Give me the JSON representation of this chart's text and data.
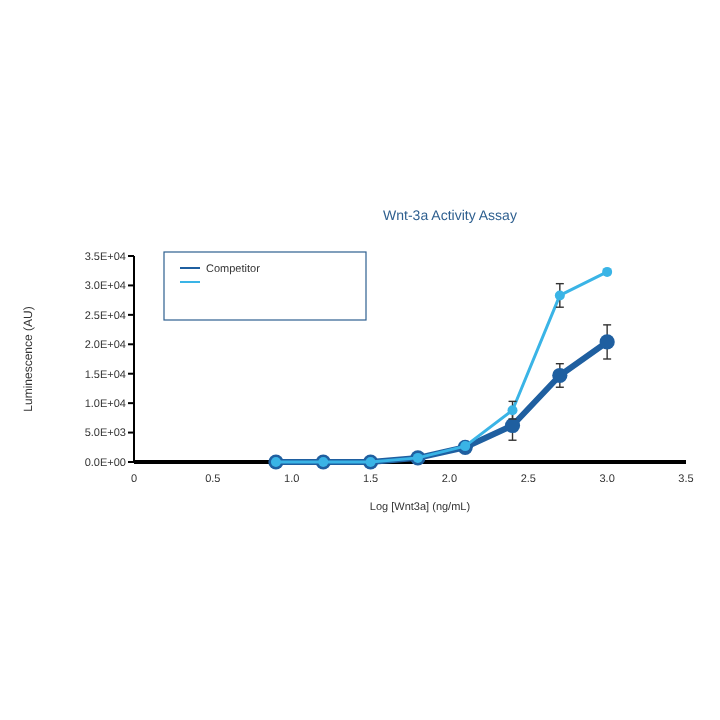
{
  "chart_data": {
    "type": "line",
    "title": "Wnt-3a Activity Assay",
    "xlabel": "Log [Wnt3a] (ng/mL)",
    "ylabel": "Luminescence (AU)",
    "x": [
      0.9,
      1.2,
      1.5,
      1.8,
      2.1,
      2.4,
      2.7,
      3.0
    ],
    "series": [
      {
        "name": "Competitor",
        "color": "#1f5fa0",
        "values": [
          0,
          0,
          0,
          700,
          2500,
          6200,
          14700,
          20400
        ],
        "errors": [
          null,
          null,
          null,
          null,
          null,
          2500,
          2000,
          2900
        ]
      },
      {
        "color": "#3ab4e6",
        "values": [
          0,
          0,
          0,
          700,
          2700,
          8800,
          28300,
          32300
        ],
        "errors": [
          null,
          null,
          null,
          null,
          null,
          1500,
          2000,
          null
        ]
      }
    ],
    "xlim": [
      0,
      3.5
    ],
    "xticks": [
      0,
      {
        "value": 0.5,
        "label": "0.5"
      },
      {
        "value": 1,
        "label": "1.0"
      },
      {
        "value": 1.5,
        "label": "1.5"
      },
      {
        "value": 2,
        "label": "2.0"
      },
      {
        "value": 2.5,
        "label": "2.5"
      },
      {
        "value": 3,
        "label": "3.0"
      },
      {
        "value": 3.5,
        "label": "3.5"
      }
    ],
    "ylim": [
      0,
      35000
    ],
    "yticks": [
      {
        "value": 0,
        "label": "0.0E+00"
      },
      {
        "value": 5000,
        "label": "5.0E+03"
      },
      {
        "value": 10000,
        "label": "1.0E+04"
      },
      {
        "value": 15000,
        "label": "1.5E+04"
      },
      {
        "value": 20000,
        "label": "2.0E+04"
      },
      {
        "value": 25000,
        "label": "2.5E+04"
      },
      {
        "value": 30000,
        "label": "3.0E+04"
      },
      {
        "value": 35000,
        "label": "3.5E+04"
      }
    ],
    "legend": "top left",
    "marker": "circle",
    "line_style": "solid",
    "grid": false
  }
}
